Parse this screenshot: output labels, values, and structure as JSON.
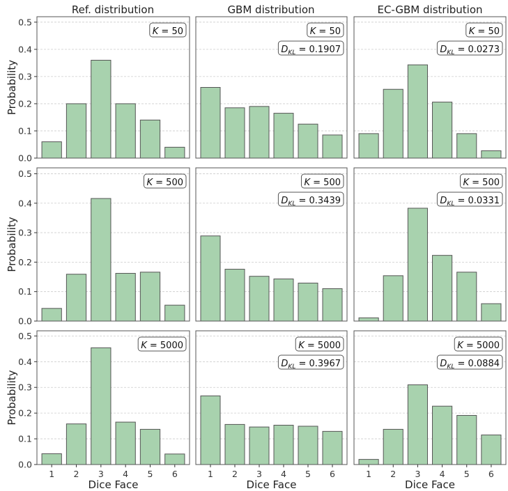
{
  "chart_data": {
    "type": "bar",
    "layout": "3x3 grid",
    "column_titles": [
      "Ref. distribution",
      "GBM distribution",
      "EC-GBM distribution"
    ],
    "ylabel": "Probability",
    "xlabel": "Dice Face",
    "categories": [
      "1",
      "2",
      "3",
      "4",
      "5",
      "6"
    ],
    "yticks": [
      "0.0",
      "0.1",
      "0.2",
      "0.3",
      "0.4",
      "0.5"
    ],
    "ylim": [
      0,
      0.52
    ],
    "grid": "horizontal dashed",
    "colors": {
      "bar_fill": "#a8d2ae",
      "bar_edge": "#555555",
      "grid": "#cccccc",
      "frame": "#555555"
    },
    "panels": [
      {
        "row": 0,
        "col": 0,
        "k_label": "K = 50",
        "dkl_label": null,
        "values": [
          0.06,
          0.2,
          0.36,
          0.2,
          0.14,
          0.04
        ]
      },
      {
        "row": 0,
        "col": 1,
        "k_label": "K = 50",
        "dkl_label": "= 0.1907",
        "values": [
          0.26,
          0.185,
          0.19,
          0.165,
          0.125,
          0.085
        ]
      },
      {
        "row": 0,
        "col": 2,
        "k_label": "K = 50",
        "dkl_label": "= 0.0273",
        "values": [
          0.09,
          0.253,
          0.343,
          0.206,
          0.09,
          0.027
        ]
      },
      {
        "row": 1,
        "col": 0,
        "k_label": "K = 500",
        "dkl_label": null,
        "values": [
          0.043,
          0.159,
          0.416,
          0.162,
          0.166,
          0.054
        ]
      },
      {
        "row": 1,
        "col": 1,
        "k_label": "K = 500",
        "dkl_label": "= 0.3439",
        "values": [
          0.289,
          0.176,
          0.152,
          0.143,
          0.129,
          0.11
        ]
      },
      {
        "row": 1,
        "col": 2,
        "k_label": "K = 500",
        "dkl_label": "= 0.0331",
        "values": [
          0.011,
          0.154,
          0.383,
          0.223,
          0.166,
          0.059
        ]
      },
      {
        "row": 2,
        "col": 0,
        "k_label": "K = 5000",
        "dkl_label": null,
        "values": [
          0.042,
          0.158,
          0.454,
          0.165,
          0.137,
          0.041
        ]
      },
      {
        "row": 2,
        "col": 1,
        "k_label": "K = 5000",
        "dkl_label": "= 0.3967",
        "values": [
          0.267,
          0.156,
          0.146,
          0.153,
          0.149,
          0.129
        ]
      },
      {
        "row": 2,
        "col": 2,
        "k_label": "K = 5000",
        "dkl_label": "= 0.0884",
        "values": [
          0.02,
          0.137,
          0.31,
          0.227,
          0.191,
          0.115
        ]
      }
    ]
  }
}
